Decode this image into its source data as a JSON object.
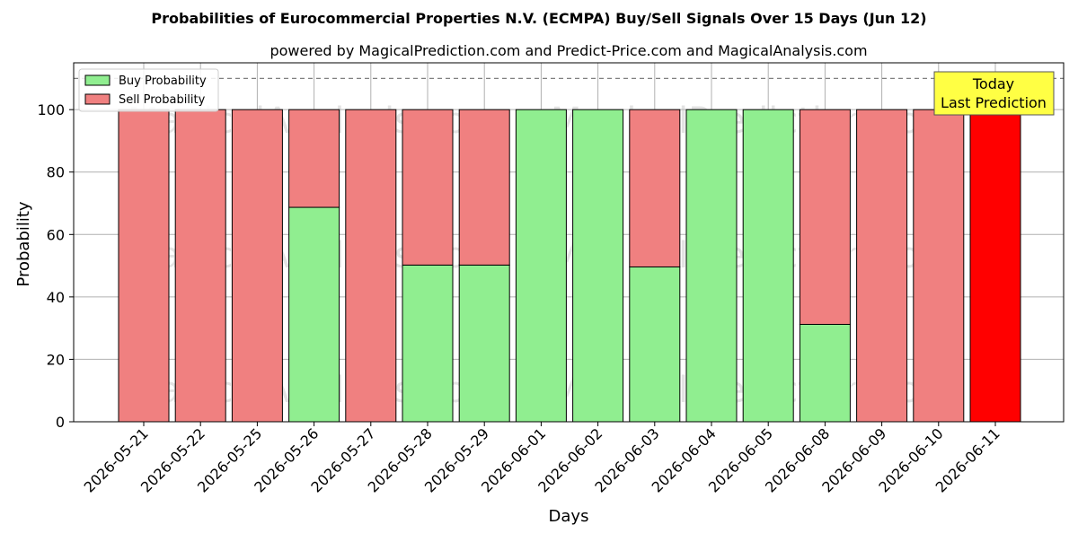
{
  "chart_data": {
    "type": "bar",
    "stacked": true,
    "title": "Probabilities of Eurocommercial Properties N.V. (ECMPA) Buy/Sell Signals Over 15 Days (Jun 12)",
    "subtitle": "powered by MagicalPrediction.com and Predict-Price.com and MagicalAnalysis.com",
    "xlabel": "Days",
    "ylabel": "Probability",
    "ylim": [
      0,
      115
    ],
    "yticks": [
      0,
      20,
      40,
      60,
      80,
      100
    ],
    "grid": true,
    "legend_position": "top-left",
    "categories": [
      "2026-05-21",
      "2026-05-22",
      "2026-05-25",
      "2026-05-26",
      "2026-05-27",
      "2026-05-28",
      "2026-05-29",
      "2026-06-01",
      "2026-06-02",
      "2026-06-03",
      "2026-06-04",
      "2026-06-05",
      "2026-06-08",
      "2026-06-09",
      "2026-06-10",
      "2026-06-11"
    ],
    "series": [
      {
        "name": "Buy Probability",
        "color": "#90ee90",
        "values": [
          0,
          0,
          0,
          68.7,
          0,
          50.2,
          50.2,
          100,
          100,
          49.6,
          100,
          100,
          31.2,
          0,
          0,
          0
        ]
      },
      {
        "name": "Sell Probability",
        "color": "#f08080",
        "values": [
          100,
          100,
          100,
          31.3,
          100,
          49.8,
          49.8,
          0,
          0,
          50.4,
          0,
          0,
          68.8,
          100,
          100,
          100
        ]
      }
    ],
    "highlight": {
      "index": 15,
      "color": "#ff0000"
    },
    "reference_line": {
      "y": 110,
      "style": "dashed",
      "color": "#808080"
    },
    "annotation": {
      "lines": [
        "Today",
        "Last Prediction"
      ],
      "background": "#ffff44"
    },
    "watermarks": [
      "MagicalAnalysis.com",
      "MagicalPrediction.com"
    ]
  }
}
